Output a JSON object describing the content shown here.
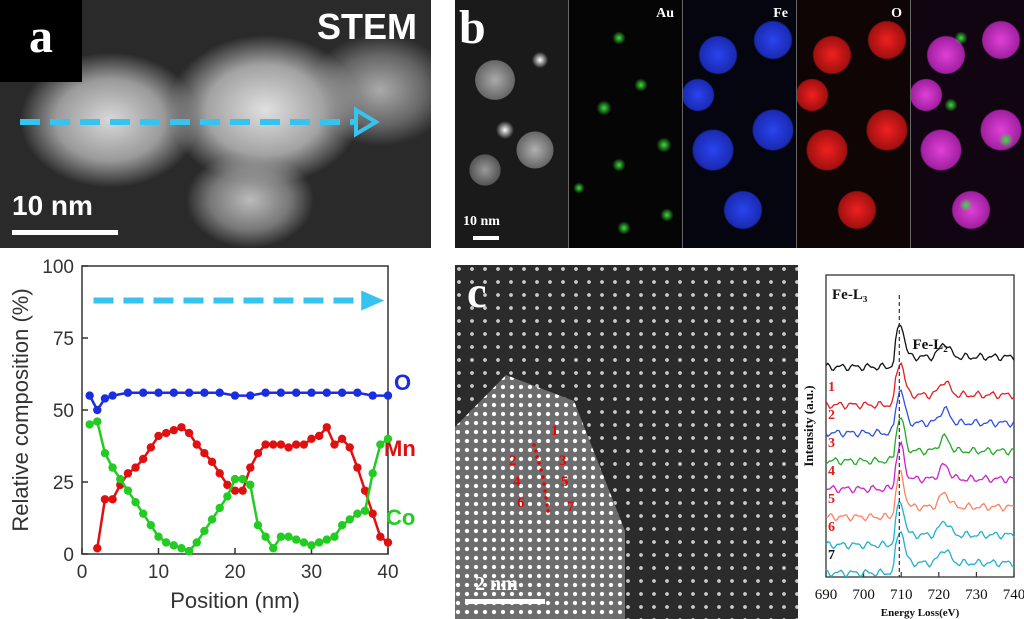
{
  "panel_a": {
    "letter": "a",
    "label": "STEM",
    "scale": "10 nm"
  },
  "panel_b": {
    "letter": "b",
    "scale": "10 nm",
    "tiles": [
      {
        "label": ""
      },
      {
        "label": "Au"
      },
      {
        "label": "Fe"
      },
      {
        "label": "O"
      },
      {
        "label": ""
      }
    ]
  },
  "panel_c": {
    "letter": "c",
    "scale": "2 nm",
    "points": [
      "1",
      "2",
      "3",
      "4",
      "5",
      "6",
      "7"
    ]
  },
  "chart_data": [
    {
      "type": "line",
      "xlabel": "Position (nm)",
      "ylabel": "Relative composition (%)",
      "xlim": [
        0,
        40
      ],
      "ylim": [
        0,
        100
      ],
      "xticks": [
        "0",
        "10",
        "20",
        "30",
        "40"
      ],
      "yticks": [
        "0",
        "25",
        "50",
        "75",
        "100"
      ],
      "series": [
        {
          "name": "O",
          "color": "#1a2ee0",
          "x": [
            1,
            2,
            3,
            4,
            6,
            8,
            10,
            12,
            14,
            16,
            18,
            20,
            22,
            24,
            26,
            28,
            30,
            32,
            34,
            36,
            38,
            40
          ],
          "y": [
            55,
            50,
            54,
            55,
            56,
            56,
            56,
            56,
            56,
            56,
            56,
            55,
            55,
            56,
            56,
            56,
            56,
            56,
            56,
            56,
            55,
            55
          ]
        },
        {
          "name": "Mn",
          "color": "#e01010",
          "x": [
            2,
            3,
            4,
            5,
            6,
            7,
            8,
            9,
            10,
            11,
            12,
            13,
            14,
            15,
            16,
            17,
            18,
            19,
            20,
            21,
            22,
            23,
            24,
            25,
            26,
            27,
            28,
            29,
            30,
            31,
            32,
            33,
            34,
            35,
            36,
            37,
            38,
            39,
            40
          ],
          "y": [
            2,
            19,
            19,
            24,
            28,
            30,
            33,
            37,
            41,
            42,
            43,
            44,
            42,
            38,
            35,
            32,
            28,
            24,
            22,
            22,
            30,
            35,
            38,
            38,
            38,
            37,
            38,
            38,
            40,
            41,
            44,
            38,
            40,
            37,
            30,
            22,
            14,
            6,
            4
          ]
        },
        {
          "name": "Co",
          "color": "#22cc22",
          "x": [
            1,
            2,
            3,
            4,
            5,
            6,
            7,
            8,
            9,
            10,
            11,
            12,
            13,
            14,
            15,
            16,
            17,
            18,
            19,
            20,
            21,
            22,
            23,
            24,
            25,
            26,
            27,
            28,
            29,
            30,
            31,
            32,
            33,
            34,
            35,
            36,
            37,
            38,
            39,
            40
          ],
          "y": [
            45,
            46,
            35,
            30,
            26,
            22,
            18,
            14,
            10,
            6,
            4,
            3,
            2,
            1,
            4,
            8,
            12,
            16,
            20,
            26,
            26,
            24,
            10,
            6,
            2,
            6,
            6,
            5,
            4,
            3,
            4,
            5,
            6,
            10,
            12,
            14,
            15,
            28,
            38,
            40
          ]
        }
      ]
    },
    {
      "type": "line",
      "xlabel": "Energy Loss(eV)",
      "ylabel": "Intensity (a.u.)",
      "xlim": [
        690,
        740
      ],
      "xticks": [
        "690",
        "700",
        "710",
        "720",
        "730",
        "740"
      ],
      "annotations": [
        "Fe-L₃",
        "Fe-L₂"
      ],
      "series": [
        {
          "name": "",
          "color": "#111111"
        },
        {
          "name": "1",
          "color": "#e02020"
        },
        {
          "name": "2",
          "color": "#3050e0"
        },
        {
          "name": "3",
          "color": "#22aa22"
        },
        {
          "name": "4",
          "color": "#cc22cc"
        },
        {
          "name": "5",
          "color": "#ff8060"
        },
        {
          "name": "6",
          "color": "#20b0d0"
        },
        {
          "name": "7",
          "color": "#20b0d0"
        }
      ]
    }
  ]
}
